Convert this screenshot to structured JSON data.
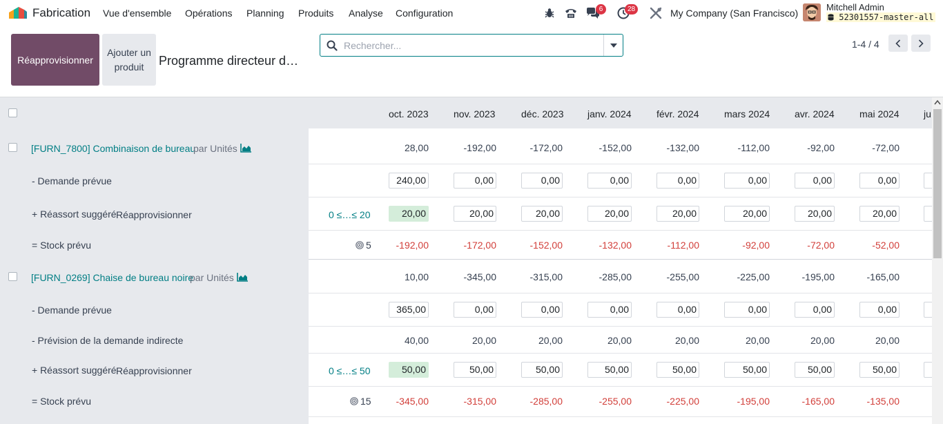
{
  "navbar": {
    "app_name": "Fabrication",
    "menu": [
      "Vue d'ensemble",
      "Opérations",
      "Planning",
      "Produits",
      "Analyse",
      "Configuration"
    ],
    "messages_count": "6",
    "activities_count": "28",
    "company": "My Company (San Francisco)",
    "user_name": "Mitchell Admin",
    "database": "52301557-master-all",
    "icons": [
      "bug-icon",
      "phone-icon",
      "chat-icon",
      "clock-icon",
      "tools-icon"
    ]
  },
  "control": {
    "replenish_label": "Réapprovisionner",
    "add_product_label": "Ajouter un produit",
    "title": "Programme directeur de production",
    "search_placeholder": "Rechercher...",
    "pager": "1-4 / 4"
  },
  "periods": [
    "oct. 2023",
    "nov. 2023",
    "déc. 2023",
    "janv. 2024",
    "févr. 2024",
    "mars 2024",
    "avr. 2024",
    "mai 2024",
    "ju"
  ],
  "products": [
    {
      "name": "[FURN_7800] Combinaison de bureau",
      "uom": "par Unités",
      "header_values": [
        "28,00",
        "-192,00",
        "-172,00",
        "-152,00",
        "-132,00",
        "-112,00",
        "-92,00",
        "-72,00"
      ],
      "demand_label": "- Demande prévue",
      "demand": [
        "240,00",
        "0,00",
        "0,00",
        "0,00",
        "0,00",
        "0,00",
        "0,00",
        "0,00"
      ],
      "replenish_label": "+ Réassort suggéré",
      "replenish_link": "Réapprovisionner",
      "bounds": "0 ≤…≤ 20",
      "replenish": [
        "20,00",
        "20,00",
        "20,00",
        "20,00",
        "20,00",
        "20,00",
        "20,00",
        "20,00"
      ],
      "stock_label": "= Stock prévu",
      "safety_stock": "5",
      "stock": [
        "-192,00",
        "-172,00",
        "-152,00",
        "-132,00",
        "-112,00",
        "-92,00",
        "-72,00",
        "-52,00"
      ]
    },
    {
      "name": "[FURN_0269] Chaise de bureau noire",
      "uom": "par Unités",
      "header_values": [
        "10,00",
        "-345,00",
        "-315,00",
        "-285,00",
        "-255,00",
        "-225,00",
        "-195,00",
        "-165,00"
      ],
      "demand_label": "- Demande prévue",
      "demand": [
        "365,00",
        "0,00",
        "0,00",
        "0,00",
        "0,00",
        "0,00",
        "0,00",
        "0,00"
      ],
      "indirect_label": "- Prévision de la demande indirecte",
      "indirect": [
        "40,00",
        "20,00",
        "20,00",
        "20,00",
        "20,00",
        "20,00",
        "20,00",
        "20,00"
      ],
      "replenish_label": "+ Réassort suggéré",
      "replenish_link": "Réapprovisionner",
      "bounds": "0 ≤…≤ 50",
      "replenish": [
        "50,00",
        "50,00",
        "50,00",
        "50,00",
        "50,00",
        "50,00",
        "50,00",
        "50,00"
      ],
      "stock_label": "= Stock prévu",
      "safety_stock": "15",
      "stock": [
        "-345,00",
        "-315,00",
        "-285,00",
        "-255,00",
        "-225,00",
        "-195,00",
        "-165,00",
        "-135,00"
      ]
    }
  ],
  "colors": {
    "brand": "#714b67",
    "accent": "#017e84",
    "negative": "#d23f3a",
    "badge": "#dc3545",
    "highlight": "#d4edda"
  }
}
